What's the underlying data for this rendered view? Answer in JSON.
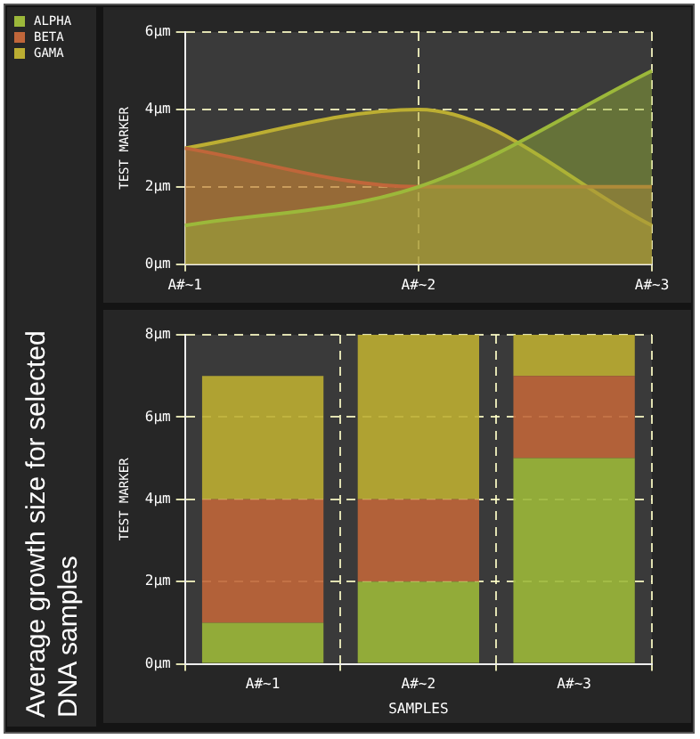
{
  "chart_data": [
    {
      "type": "area",
      "title": "Average growth size for selected DNA samples",
      "ylabel": "TEST MARKER",
      "categories": [
        "A#~1",
        "A#~2",
        "A#~3"
      ],
      "series": [
        {
          "name": "ALPHA",
          "color": "#9cb83a",
          "values": [
            1,
            2,
            5
          ]
        },
        {
          "name": "BETA",
          "color": "#c0663a",
          "values": [
            3,
            2,
            2
          ]
        },
        {
          "name": "GAMA",
          "color": "#bcae32",
          "values": [
            3,
            4,
            1
          ]
        }
      ],
      "ylim": [
        0,
        6
      ],
      "yticks": [
        {
          "value": 0,
          "label": "0µm"
        },
        {
          "value": 2,
          "label": "2µm"
        },
        {
          "value": 4,
          "label": "4µm"
        },
        {
          "value": 6,
          "label": "6µm"
        }
      ],
      "grid": true,
      "legend": "top left"
    },
    {
      "type": "bar",
      "stacked": true,
      "xlabel": "SAMPLES",
      "ylabel": "TEST MARKER",
      "categories": [
        "A#~1",
        "A#~2",
        "A#~3"
      ],
      "series": [
        {
          "color": "#9cb83a",
          "values": [
            1,
            2,
            5
          ]
        },
        {
          "color": "#c0663a",
          "values": [
            3,
            2,
            2
          ]
        },
        {
          "color": "#bcae32",
          "values": [
            3,
            4,
            1
          ]
        }
      ],
      "ylim": [
        0,
        8
      ],
      "yticks": [
        {
          "value": 0,
          "label": "0µm"
        },
        {
          "value": 2,
          "label": "2µm"
        },
        {
          "value": 4,
          "label": "4µm"
        },
        {
          "value": 6,
          "label": "6µm"
        },
        {
          "value": 8,
          "label": "8µm"
        }
      ],
      "grid": true
    }
  ]
}
